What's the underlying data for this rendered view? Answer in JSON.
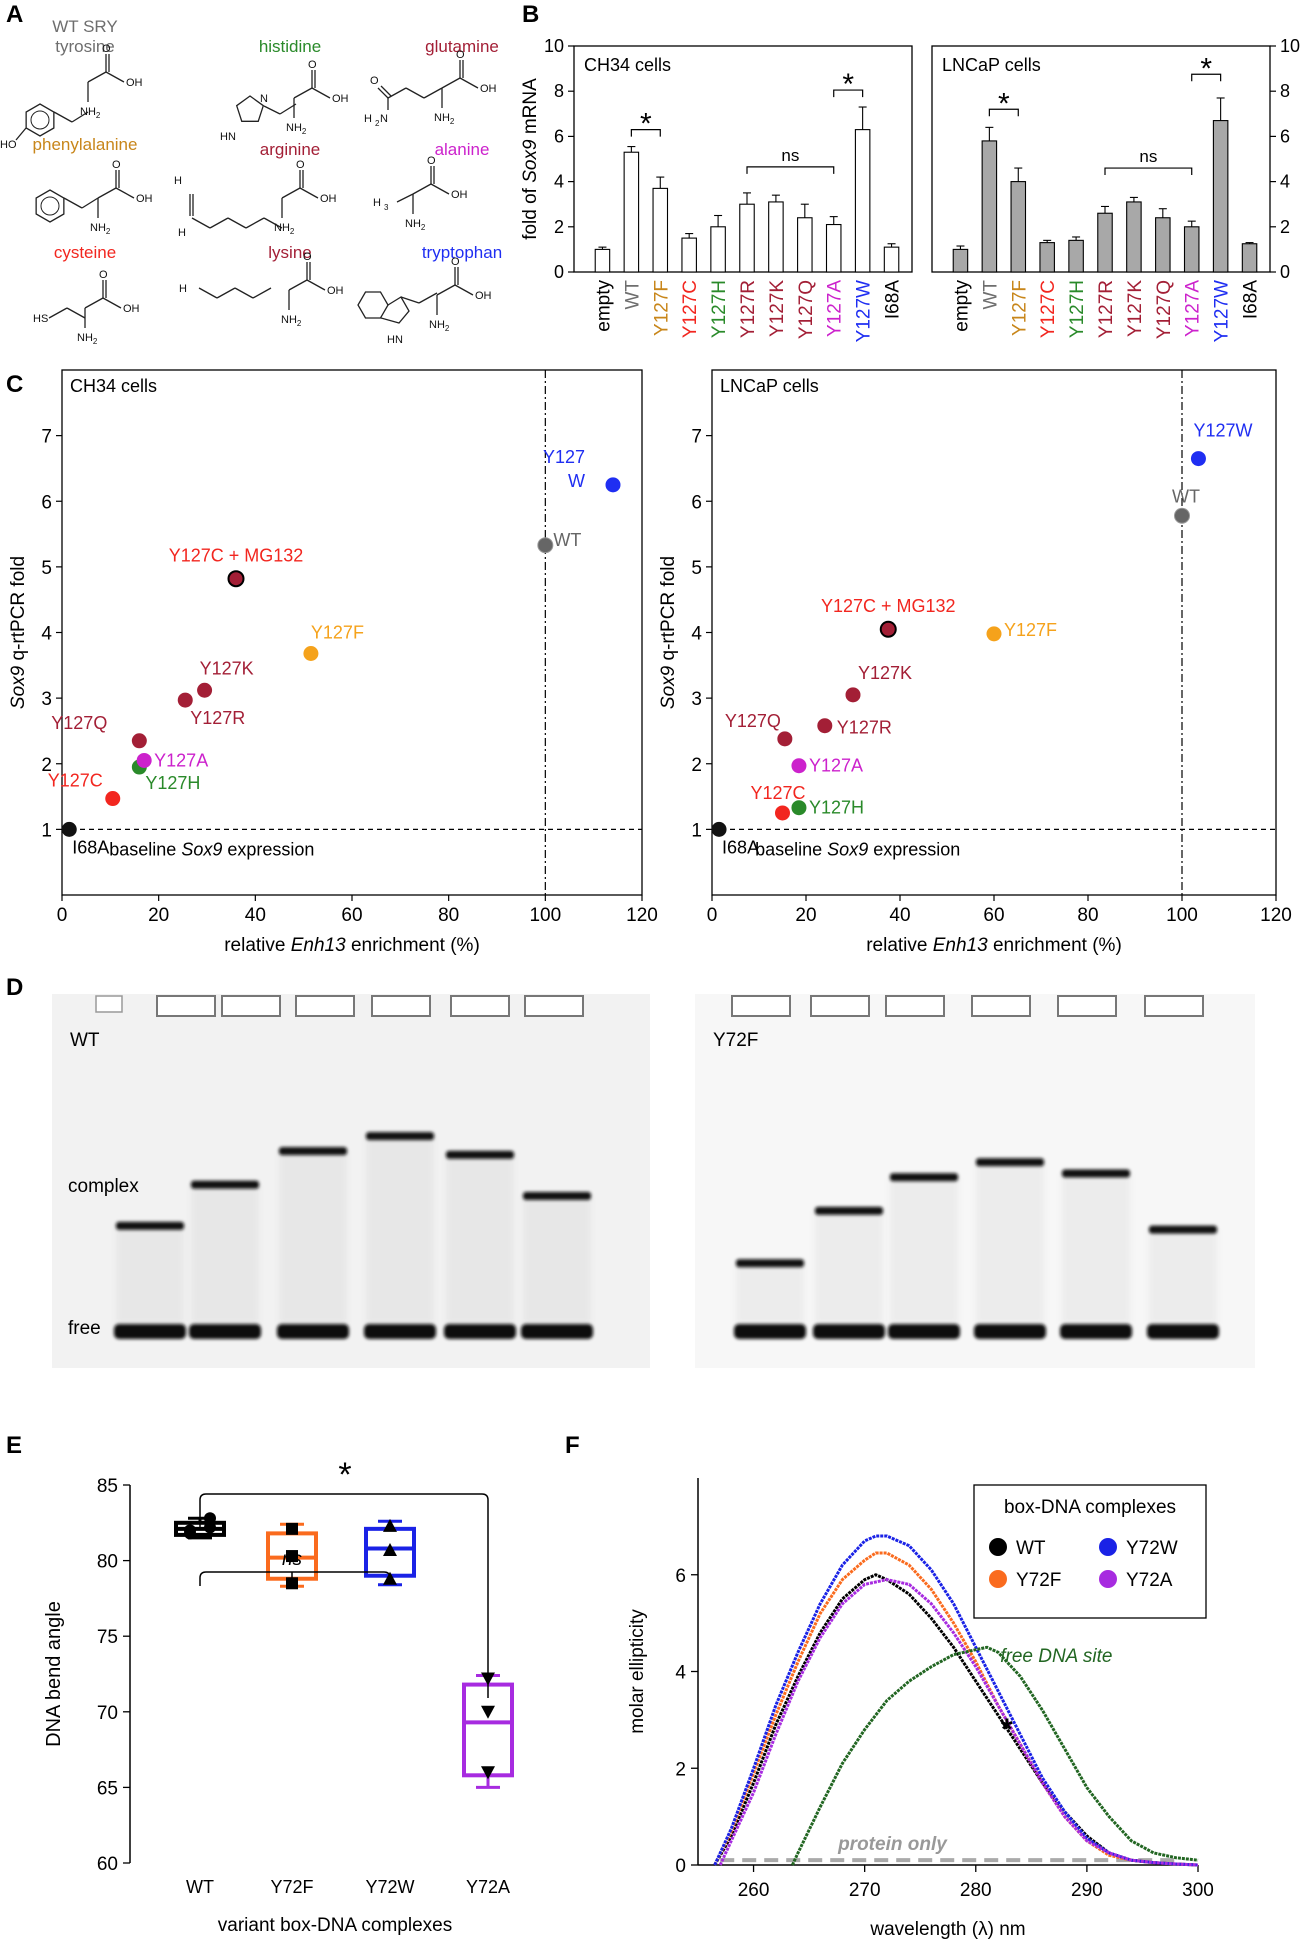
{
  "panel_labels": [
    "A",
    "B",
    "C",
    "D",
    "E",
    "F"
  ],
  "colors": {
    "gray": "#6e6e6e",
    "orange": "#f5a21b",
    "bar_orange": "#c8861a",
    "red": "#f2261f",
    "green": "#2a8a2a",
    "darkred": "#a31f36",
    "magenta": "#cc22cc",
    "blue": "#1f2ef2",
    "black": "#000000",
    "e_black": "#000000",
    "e_orange": "#fa6b1e",
    "e_blue": "#1a22e6",
    "e_purple": "#a72be0",
    "f_green": "#226622",
    "f_gray": "#aaaaaa"
  },
  "panelA": {
    "title_line1": "WT SRY",
    "molecules": [
      {
        "name": "tyrosine",
        "color": "#6e6e6e",
        "fg": "tyr"
      },
      {
        "name": "histidine",
        "color": "#2a8a2a",
        "fg": "his"
      },
      {
        "name": "glutamine",
        "color": "#a31f36",
        "fg": "gln"
      },
      {
        "name": "phenylalanine",
        "color": "#c8861a",
        "fg": "phe"
      },
      {
        "name": "arginine",
        "color": "#a31f36",
        "fg": "arg"
      },
      {
        "name": "alanine",
        "color": "#cc22cc",
        "fg": "ala"
      },
      {
        "name": "cysteine",
        "color": "#f2261f",
        "fg": "cys"
      },
      {
        "name": "lysine",
        "color": "#a31f36",
        "fg": "lys"
      },
      {
        "name": "tryptophan",
        "color": "#1f2ef2",
        "fg": "trp"
      }
    ],
    "chem": {
      "oh": "OH",
      "o": "O",
      "nh2": "NH",
      "sub2": "2",
      "ho": "HO",
      "hn": "HN",
      "n": "N",
      "h2n": "H",
      "hs": "HS",
      "h3c": "H",
      "sub3": "3",
      "h2n_sub": "2"
    }
  },
  "chart_data": [
    {
      "panel": "B-left",
      "type": "bar",
      "title": "CH34 cells",
      "ylabel_prefix": "fold of ",
      "ylabel_italic": "Sox9",
      "ylabel_suffix": " mRNA",
      "ylim": [
        0,
        10
      ],
      "yticks": [
        0,
        2,
        4,
        6,
        8,
        10
      ],
      "categories": [
        "empty",
        "WT",
        "Y127F",
        "Y127C",
        "Y127H",
        "Y127R",
        "Y127K",
        "Y127Q",
        "Y127A",
        "Y127W",
        "I68A"
      ],
      "category_colors": [
        "#000000",
        "#6e6e6e",
        "#c8861a",
        "#f2261f",
        "#2a8a2a",
        "#a31f36",
        "#a31f36",
        "#a31f36",
        "#cc22cc",
        "#1f2ef2",
        "#000000"
      ],
      "values": [
        1.0,
        5.3,
        3.7,
        1.5,
        2.0,
        3.0,
        3.1,
        2.4,
        2.1,
        6.3,
        1.1
      ],
      "errors": [
        0.1,
        0.25,
        0.5,
        0.2,
        0.5,
        0.5,
        0.3,
        0.6,
        0.35,
        1.0,
        0.15
      ],
      "bar_fill": "#ffffff",
      "annotations": [
        "*",
        "ns",
        "*"
      ]
    },
    {
      "panel": "B-right",
      "type": "bar",
      "title": "LNCaP cells",
      "ylim": [
        0,
        10
      ],
      "yticks": [
        0,
        2,
        4,
        6,
        8,
        10
      ],
      "categories": [
        "empty",
        "WT",
        "Y127F",
        "Y127C",
        "Y127H",
        "Y127R",
        "Y127K",
        "Y127Q",
        "Y127A",
        "Y127W",
        "I68A"
      ],
      "category_colors": [
        "#000000",
        "#6e6e6e",
        "#c8861a",
        "#f2261f",
        "#2a8a2a",
        "#a31f36",
        "#a31f36",
        "#a31f36",
        "#cc22cc",
        "#1f2ef2",
        "#000000"
      ],
      "values": [
        1.0,
        5.8,
        4.0,
        1.3,
        1.4,
        2.6,
        3.1,
        2.4,
        2.0,
        6.7,
        1.25
      ],
      "errors": [
        0.15,
        0.6,
        0.6,
        0.1,
        0.15,
        0.3,
        0.2,
        0.4,
        0.25,
        1.0,
        0.05
      ],
      "bar_fill": "#a8a8a8",
      "annotations": [
        "*",
        "ns",
        "*"
      ]
    },
    {
      "panel": "C-left",
      "type": "scatter",
      "title": "CH34 cells",
      "xlabel_prefix": "relative ",
      "xlabel_italic": "Enh13",
      "xlabel_suffix": " enrichment (%)",
      "ylabel_italic": "Sox9",
      "ylabel_suffix": " q-rtPCR fold",
      "xlim": [
        0,
        120
      ],
      "ylim": [
        0,
        8
      ],
      "xticks": [
        0,
        20,
        40,
        60,
        80,
        100,
        120
      ],
      "yticks": [
        1,
        2,
        3,
        4,
        5,
        6,
        7
      ],
      "baseline_prefix": "baseline ",
      "baseline_italic": "Sox9",
      "baseline_suffix": " expression",
      "points": [
        {
          "label": "I68A",
          "x": 1.5,
          "y": 1.0,
          "color": "#111111",
          "lc": "#000000",
          "ring": false
        },
        {
          "label": "Y127C",
          "x": 10.5,
          "y": 1.47,
          "color": "#f2261f",
          "lc": "#f2261f",
          "ring": false
        },
        {
          "label": "Y127H",
          "x": 16,
          "y": 1.95,
          "color": "#2a8a2a",
          "lc": "#2a8a2a",
          "ring": false
        },
        {
          "label": "Y127A",
          "x": 17,
          "y": 2.05,
          "color": "#cc22cc",
          "lc": "#cc22cc",
          "ring": false
        },
        {
          "label": "Y127Q",
          "x": 16,
          "y": 2.35,
          "color": "#a31f36",
          "lc": "#a31f36",
          "ring": false
        },
        {
          "label": "Y127R",
          "x": 25.5,
          "y": 2.97,
          "color": "#a31f36",
          "lc": "#a31f36",
          "ring": false
        },
        {
          "label": "Y127K",
          "x": 29.5,
          "y": 3.12,
          "color": "#a31f36",
          "lc": "#a31f36",
          "ring": false
        },
        {
          "label": "Y127F",
          "x": 51.5,
          "y": 3.68,
          "color": "#f5a21b",
          "lc": "#f5a21b",
          "ring": false
        },
        {
          "label": "Y127C + MG132",
          "x": 36,
          "y": 4.82,
          "color": "#a31f36",
          "lc": "#f2261f",
          "ring": true
        },
        {
          "label": "WT",
          "x": 100,
          "y": 5.33,
          "color": "#666666",
          "lc": "#666666",
          "ring": false
        },
        {
          "label": "Y127\nW",
          "x": 114,
          "y": 6.25,
          "color": "#1f2ef2",
          "lc": "#1f2ef2",
          "ring": false
        }
      ]
    },
    {
      "panel": "C-right",
      "type": "scatter",
      "title": "LNCaP cells",
      "xlabel_prefix": "relative ",
      "xlabel_italic": "Enh13",
      "xlabel_suffix": " enrichment (%)",
      "ylabel_italic": "Sox9",
      "ylabel_suffix": " q-rtPCR fold",
      "xlim": [
        0,
        120
      ],
      "ylim": [
        0,
        8
      ],
      "xticks": [
        0,
        20,
        40,
        60,
        80,
        100,
        120
      ],
      "yticks": [
        1,
        2,
        3,
        4,
        5,
        6,
        7
      ],
      "baseline_prefix": "baseline ",
      "baseline_italic": "Sox9",
      "baseline_suffix": " expression",
      "points": [
        {
          "label": "I68A",
          "x": 1.5,
          "y": 1.0,
          "color": "#111111",
          "lc": "#000000",
          "ring": false
        },
        {
          "label": "Y127C",
          "x": 15,
          "y": 1.25,
          "color": "#f2261f",
          "lc": "#f2261f",
          "ring": false
        },
        {
          "label": "Y127H",
          "x": 18.5,
          "y": 1.33,
          "color": "#2a8a2a",
          "lc": "#2a8a2a",
          "ring": false
        },
        {
          "label": "Y127A",
          "x": 18.5,
          "y": 1.97,
          "color": "#cc22cc",
          "lc": "#cc22cc",
          "ring": false
        },
        {
          "label": "Y127Q",
          "x": 15.5,
          "y": 2.38,
          "color": "#a31f36",
          "lc": "#a31f36",
          "ring": false
        },
        {
          "label": "Y127R",
          "x": 24,
          "y": 2.58,
          "color": "#a31f36",
          "lc": "#a31f36",
          "ring": false
        },
        {
          "label": "Y127K",
          "x": 30,
          "y": 3.05,
          "color": "#a31f36",
          "lc": "#a31f36",
          "ring": false
        },
        {
          "label": "Y127C + MG132",
          "x": 37.5,
          "y": 4.05,
          "color": "#a31f36",
          "lc": "#f2261f",
          "ring": true
        },
        {
          "label": "Y127F",
          "x": 60,
          "y": 3.98,
          "color": "#f5a21b",
          "lc": "#f5a21b",
          "ring": false
        },
        {
          "label": "WT",
          "x": 100,
          "y": 5.78,
          "color": "#666666",
          "lc": "#666666",
          "ring": false
        },
        {
          "label": "Y127W",
          "x": 103.5,
          "y": 6.65,
          "color": "#1f2ef2",
          "lc": "#1f2ef2",
          "ring": false
        }
      ]
    },
    {
      "panel": "D",
      "type": "gel",
      "gels": [
        {
          "label": "WT",
          "complex_positions": [
            0.62,
            0.51,
            0.42,
            0.38,
            0.43,
            0.54
          ]
        },
        {
          "label": "Y72F",
          "complex_positions": [
            0.72,
            0.58,
            0.49,
            0.45,
            0.48,
            0.63
          ]
        }
      ],
      "band_labels": [
        "complex",
        "free"
      ]
    },
    {
      "panel": "E",
      "type": "box",
      "ylabel": "DNA bend angle",
      "xlabel": "variant box-DNA complexes",
      "ylim": [
        60,
        85
      ],
      "yticks": [
        60,
        65,
        70,
        75,
        80,
        85
      ],
      "categories": [
        "WT",
        "Y72F",
        "Y72W",
        "Y72A"
      ],
      "colors": [
        "#000000",
        "#fa6b1e",
        "#1a22e6",
        "#a72be0"
      ],
      "markers": [
        "circle",
        "square",
        "triangle-up",
        "triangle-down"
      ],
      "boxes": [
        {
          "min": 81.5,
          "q1": 81.7,
          "median": 82.1,
          "q3": 82.5,
          "max": 82.8,
          "points": [
            81.8,
            82.0,
            82.2,
            82.8
          ]
        },
        {
          "min": 78.3,
          "q1": 78.8,
          "median": 80.2,
          "q3": 81.8,
          "max": 82.4,
          "points": [
            78.5,
            80.3,
            82.1
          ]
        },
        {
          "min": 78.4,
          "q1": 79.0,
          "median": 80.8,
          "q3": 82.1,
          "max": 82.6,
          "points": [
            78.8,
            80.7,
            82.3
          ]
        },
        {
          "min": 65.0,
          "q1": 65.8,
          "median": 69.3,
          "q3": 71.8,
          "max": 72.4,
          "points": [
            66.0,
            70.0,
            72.2
          ]
        }
      ],
      "sig": [
        "*",
        "ns"
      ]
    },
    {
      "panel": "F",
      "type": "line",
      "ylabel": "molar ellipticity",
      "xlabel": "wavelength (λ) nm",
      "xlim": [
        255,
        300
      ],
      "ylim": [
        0,
        8
      ],
      "xticks": [
        260,
        270,
        280,
        290,
        300
      ],
      "yticks": [
        0,
        2,
        4,
        6
      ],
      "legend_title": "box-DNA complexes",
      "series": [
        {
          "name": "WT",
          "color": "#000000",
          "x": [
            256.5,
            258,
            260,
            262,
            264,
            266,
            268,
            270,
            271,
            272,
            274,
            276,
            278,
            280,
            282,
            284,
            286,
            288,
            290,
            292,
            294,
            296,
            298,
            300
          ],
          "y": [
            0,
            0.6,
            1.7,
            2.9,
            3.9,
            4.8,
            5.5,
            5.9,
            6.0,
            5.9,
            5.6,
            5.1,
            4.5,
            3.8,
            3.1,
            2.4,
            1.7,
            1.1,
            0.6,
            0.25,
            0.1,
            0.05,
            0.02,
            0
          ]
        },
        {
          "name": "Y72F",
          "color": "#fa6b1e",
          "x": [
            256.5,
            258,
            260,
            262,
            264,
            266,
            268,
            270,
            271,
            272,
            274,
            276,
            278,
            280,
            282,
            284,
            286,
            288,
            290,
            292,
            294,
            296,
            298,
            300
          ],
          "y": [
            0,
            0.7,
            1.9,
            3.1,
            4.2,
            5.2,
            5.9,
            6.3,
            6.45,
            6.45,
            6.2,
            5.7,
            5.0,
            4.2,
            3.3,
            2.5,
            1.7,
            1.0,
            0.5,
            0.2,
            0.1,
            0.05,
            0.02,
            0
          ]
        },
        {
          "name": "Y72W",
          "color": "#1a22e6",
          "x": [
            256.5,
            258,
            260,
            262,
            264,
            266,
            268,
            270,
            271,
            272,
            274,
            276,
            278,
            280,
            282,
            284,
            286,
            288,
            290,
            292,
            294,
            296,
            298,
            300
          ],
          "y": [
            0,
            0.75,
            2.0,
            3.3,
            4.4,
            5.4,
            6.2,
            6.7,
            6.8,
            6.8,
            6.6,
            6.1,
            5.4,
            4.5,
            3.6,
            2.7,
            1.8,
            1.1,
            0.55,
            0.25,
            0.1,
            0.05,
            0.02,
            0
          ]
        },
        {
          "name": "Y72A",
          "color": "#a72be0",
          "x": [
            257,
            258,
            260,
            262,
            264,
            266,
            268,
            270,
            272,
            274,
            276,
            278,
            280,
            282,
            284,
            286,
            288,
            290,
            292,
            294,
            296,
            298,
            300
          ],
          "y": [
            0,
            0.5,
            1.5,
            2.7,
            3.8,
            4.7,
            5.4,
            5.8,
            5.9,
            5.8,
            5.4,
            4.8,
            4.1,
            3.3,
            2.5,
            1.7,
            1.0,
            0.5,
            0.25,
            0.1,
            0.05,
            0.02,
            0
          ]
        },
        {
          "name": "free DNA site",
          "color": "#226622",
          "x": [
            263.5,
            264,
            266,
            268,
            270,
            272,
            274,
            276,
            278,
            280,
            281,
            282,
            284,
            286,
            288,
            290,
            292,
            294,
            296,
            298,
            300
          ],
          "y": [
            0,
            0.25,
            1.2,
            2.1,
            2.8,
            3.4,
            3.8,
            4.1,
            4.35,
            4.45,
            4.5,
            4.4,
            3.9,
            3.2,
            2.4,
            1.6,
            1.0,
            0.5,
            0.25,
            0.15,
            0.1
          ]
        }
      ],
      "annotations": {
        "free_dna": "free DNA site",
        "protein_only": "protein only",
        "star": "*"
      }
    }
  ]
}
